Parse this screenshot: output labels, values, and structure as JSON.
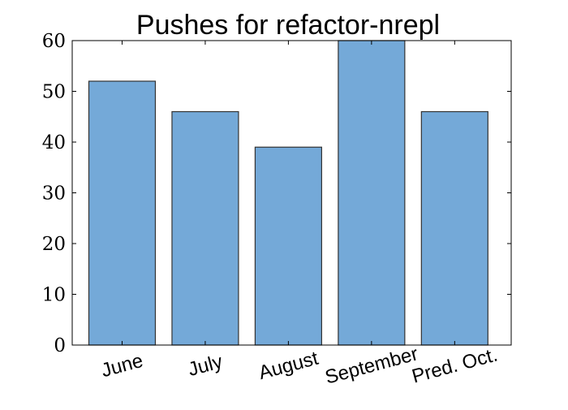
{
  "chart_data": {
    "type": "bar",
    "title": "Pushes for refactor-nrepl",
    "xlabel": "",
    "ylabel": "",
    "categories": [
      "June",
      "July",
      "August",
      "September",
      "Pred. Oct."
    ],
    "values": [
      52,
      46,
      39,
      60,
      46
    ],
    "ylim": [
      0,
      60
    ],
    "yticks": [
      "0",
      "10",
      "20",
      "30",
      "40",
      "50",
      "60"
    ],
    "grid": false,
    "legend": "none",
    "colors": {
      "bar_fill": "#74a9d8",
      "bar_edge": "#333333",
      "frame": "#000000"
    }
  }
}
